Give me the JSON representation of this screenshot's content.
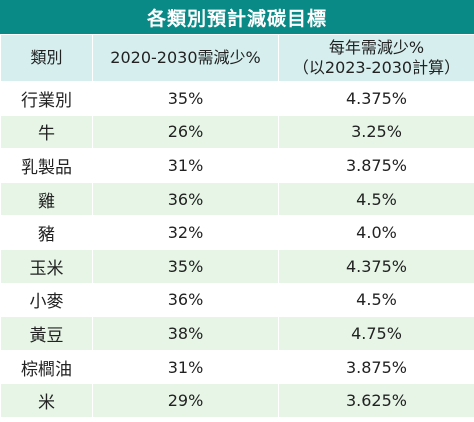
{
  "title": "各類別預計減碳目標",
  "headers": {
    "category": "類別",
    "col_2020_2030": "2020-2030需減少%",
    "annual_line1": "每年需減少%",
    "annual_line2": "（以2023-2030計算）"
  },
  "rows": [
    {
      "category": "行業別",
      "reduction_2020_2030": "35%",
      "annual_reduction": "4.375%"
    },
    {
      "category": "牛",
      "reduction_2020_2030": "26%",
      "annual_reduction": "3.25%"
    },
    {
      "category": "乳製品",
      "reduction_2020_2030": "31%",
      "annual_reduction": "3.875%"
    },
    {
      "category": "雞",
      "reduction_2020_2030": "36%",
      "annual_reduction": "4.5%"
    },
    {
      "category": "豬",
      "reduction_2020_2030": "32%",
      "annual_reduction": "4.0%"
    },
    {
      "category": "玉米",
      "reduction_2020_2030": "35%",
      "annual_reduction": "4.375%"
    },
    {
      "category": "小麥",
      "reduction_2020_2030": "36%",
      "annual_reduction": "4.5%"
    },
    {
      "category": "黃豆",
      "reduction_2020_2030": "38%",
      "annual_reduction": "4.75%"
    },
    {
      "category": "棕櫚油",
      "reduction_2020_2030": "31%",
      "annual_reduction": "3.875%"
    },
    {
      "category": "米",
      "reduction_2020_2030": "29%",
      "annual_reduction": "3.625%"
    }
  ],
  "colors": {
    "title_bg": "#0a8a86",
    "header_bg": "#d6efee",
    "stripe_bg": "#e6f5e6"
  }
}
